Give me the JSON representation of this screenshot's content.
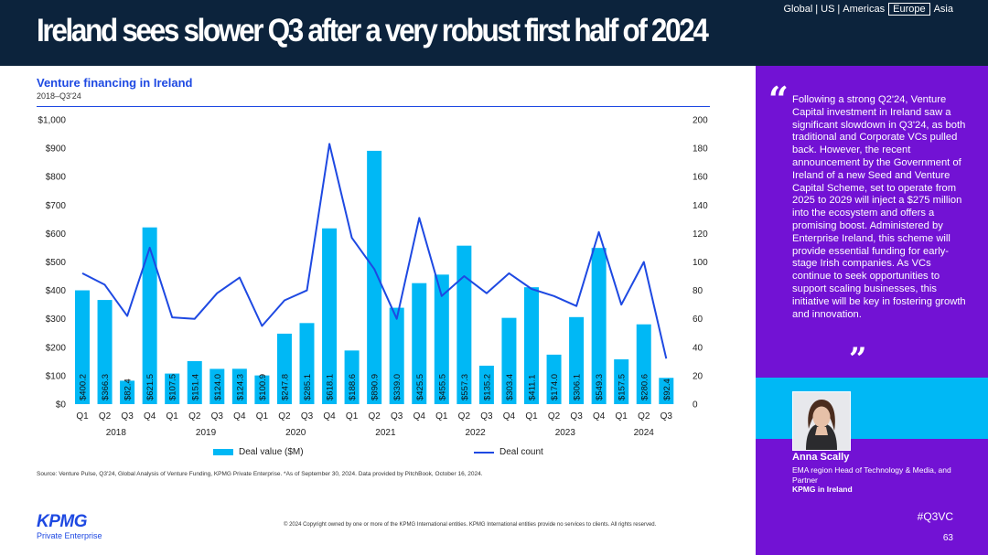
{
  "header": {
    "title": "Ireland sees slower Q3 after a very robust first half of 2024",
    "regions": [
      "Global",
      "US",
      "Americas",
      "Europe",
      "Asia"
    ],
    "active_region": "Europe"
  },
  "chart_data": {
    "type": "bar",
    "title": "Venture financing in Ireland",
    "subtitle": "2018–Q3'24",
    "quarters": [
      "Q1",
      "Q2",
      "Q3",
      "Q4",
      "Q1",
      "Q2",
      "Q3",
      "Q4",
      "Q1",
      "Q2",
      "Q3",
      "Q4",
      "Q1",
      "Q2",
      "Q3",
      "Q4",
      "Q1",
      "Q2",
      "Q3",
      "Q4",
      "Q1",
      "Q2",
      "Q3",
      "Q4",
      "Q1",
      "Q2",
      "Q3"
    ],
    "years": [
      "2018",
      "2019",
      "2020",
      "2021",
      "2022",
      "2023",
      "2024"
    ],
    "series": [
      {
        "name": "Deal value ($M)",
        "type": "bar",
        "axis": "left",
        "values": [
          400.2,
          366.3,
          82.4,
          621.5,
          107.5,
          151.4,
          124.0,
          124.3,
          100.9,
          247.8,
          285.1,
          618.1,
          188.6,
          890.9,
          339.0,
          425.5,
          455.5,
          557.3,
          135.2,
          303.4,
          411.1,
          174.0,
          306.1,
          549.3,
          157.5,
          280.6,
          92.4
        ],
        "labels": [
          "$400.2",
          "$366.3",
          "$82.4",
          "$621.5",
          "$107.5",
          "$151.4",
          "$124.0",
          "$124.3",
          "$100.9",
          "$247.8",
          "$285.1",
          "$618.1",
          "$188.6",
          "$890.9",
          "$339.0",
          "$425.5",
          "$455.5",
          "$557.3",
          "$135.2",
          "$303.4",
          "$411.1",
          "$174.0",
          "$306.1",
          "$549.3",
          "$157.5",
          "$280.6",
          "$92.4"
        ]
      },
      {
        "name": "Deal count",
        "type": "line",
        "axis": "right",
        "values": [
          92,
          84,
          62,
          110,
          61,
          60,
          78,
          89,
          55,
          73,
          80,
          183,
          117,
          95,
          60,
          131,
          76,
          90,
          78,
          92,
          81,
          76,
          69,
          121,
          70,
          100,
          32
        ]
      }
    ],
    "y_left": {
      "min": 0,
      "max": 1000,
      "ticks": [
        "$0",
        "$100",
        "$200",
        "$300",
        "$400",
        "$500",
        "$600",
        "$700",
        "$800",
        "$900",
        "$1,000"
      ]
    },
    "y_right": {
      "min": 0,
      "max": 200,
      "ticks": [
        "0",
        "20",
        "40",
        "60",
        "80",
        "100",
        "120",
        "140",
        "160",
        "180",
        "200"
      ]
    },
    "colors": {
      "bar": "#00b8f5",
      "line": "#1e49e2"
    },
    "legend": [
      "Deal value ($M)",
      "Deal count"
    ],
    "grid": false,
    "legend_position": "bottom"
  },
  "source": "Source: Venture Pulse, Q3'24, Global Analysis of Venture Funding, KPMG Private Enterprise. *As of September 30, 2024. Data provided by PitchBook, October 16, 2024.",
  "copyright": "© 2024 Copyright owned by one or more of the KPMG International entities. KPMG International entities provide no services to clients. All rights reserved.",
  "logo": {
    "word": "KPMG",
    "sub": "Private Enterprise"
  },
  "quote": {
    "open_mark": "“",
    "close_mark": "”",
    "text": "Following a strong Q2'24, Venture Capital investment in Ireland saw a significant slowdown in Q3'24, as both traditional and Corporate VCs pulled back. However, the recent announcement by the Government of Ireland of a new Seed and Venture Capital Scheme, set to operate from 2025 to 2029 will inject a $275 million into the ecosystem and offers a promising boost. Administered by Enterprise Ireland, this scheme will provide essential funding for early-stage Irish companies. As VCs continue to seek opportunities to support scaling businesses, this initiative will be key in fostering growth and innovation."
  },
  "person": {
    "name": "Anna Scally",
    "role": "EMA region Head of Technology & Media, and Partner",
    "org": "KPMG in Ireland"
  },
  "hashtag": "#Q3VC",
  "page_number": "63",
  "colors": {
    "header_bg": "#0c233c",
    "panel_bg": "#7212d4",
    "band_bg": "#00b8f5",
    "accent": "#1e49e2"
  }
}
